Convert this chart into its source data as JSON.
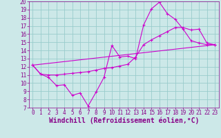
{
  "background_color": "#cce8e8",
  "grid_color": "#99cccc",
  "line_color": "#cc00cc",
  "xlim": [
    -0.5,
    23.5
  ],
  "ylim": [
    7,
    20
  ],
  "xticks": [
    0,
    1,
    2,
    3,
    4,
    5,
    6,
    7,
    8,
    9,
    10,
    11,
    12,
    13,
    14,
    15,
    16,
    17,
    18,
    19,
    20,
    21,
    22,
    23
  ],
  "yticks": [
    7,
    8,
    9,
    10,
    11,
    12,
    13,
    14,
    15,
    16,
    17,
    18,
    19,
    20
  ],
  "xlabel": "Windchill (Refroidissement éolien,°C)",
  "line1_x": [
    0,
    1,
    2,
    3,
    4,
    5,
    6,
    7,
    8,
    9,
    10,
    11,
    12,
    13,
    14,
    15,
    16,
    17,
    18,
    19,
    20,
    21,
    22,
    23
  ],
  "line1_y": [
    12.2,
    11.1,
    10.7,
    9.7,
    9.8,
    8.5,
    8.8,
    7.2,
    8.9,
    10.7,
    14.6,
    13.2,
    13.3,
    13.0,
    17.1,
    19.1,
    19.9,
    18.5,
    17.8,
    16.6,
    15.2,
    14.9,
    14.7,
    14.7
  ],
  "line2_x": [
    0,
    1,
    2,
    3,
    4,
    5,
    6,
    7,
    8,
    9,
    10,
    11,
    12,
    13,
    14,
    15,
    16,
    17,
    18,
    19,
    20,
    21,
    22,
    23
  ],
  "line2_y": [
    12.2,
    11.1,
    11.0,
    11.0,
    11.1,
    11.2,
    11.3,
    11.4,
    11.6,
    11.8,
    11.9,
    12.1,
    12.3,
    13.2,
    14.7,
    15.3,
    15.8,
    16.3,
    16.8,
    16.8,
    16.5,
    16.6,
    14.9,
    14.7
  ],
  "line3_x": [
    0,
    23
  ],
  "line3_y": [
    12.2,
    14.7
  ],
  "tick_fontsize": 5.5,
  "xlabel_fontsize": 7.0,
  "tick_color": "#880088",
  "xlabel_color": "#880088"
}
